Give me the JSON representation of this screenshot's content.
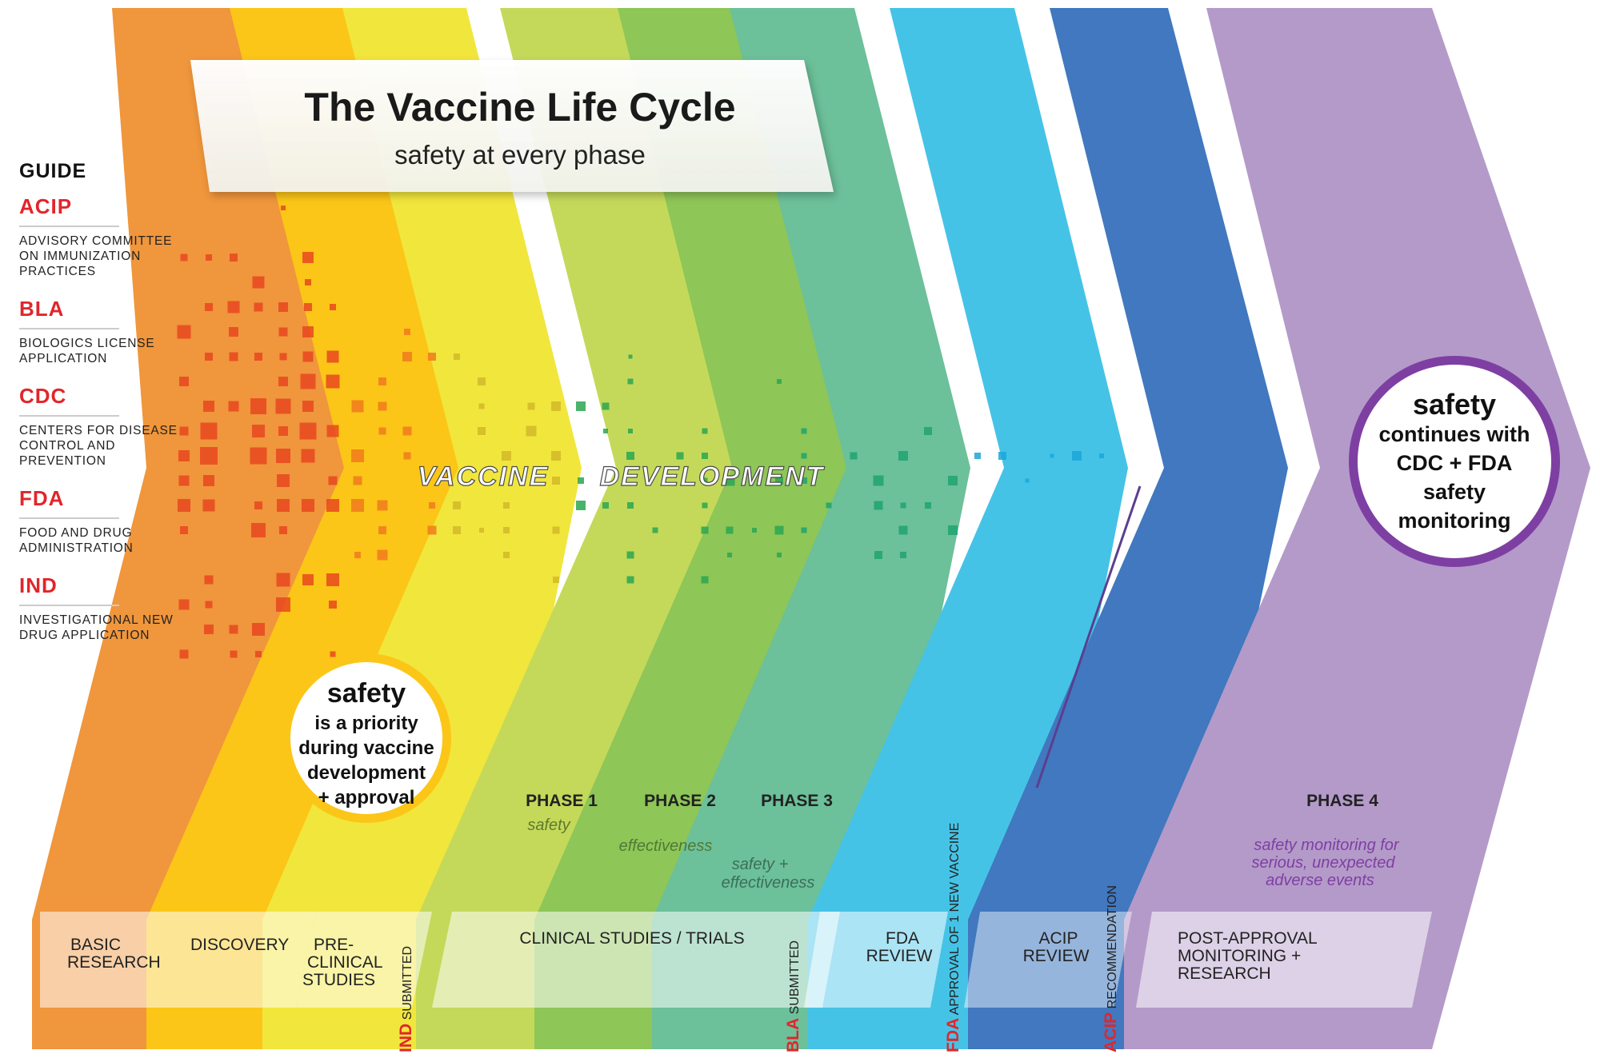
{
  "title": "The Vaccine Life Cycle",
  "subtitle": "safety at every phase",
  "guide": {
    "heading": "GUIDE",
    "items": [
      {
        "abbr": "ACIP",
        "full": "ADVISORY COMMITTEE ON IMMUNIZATION PRACTICES"
      },
      {
        "abbr": "BLA",
        "full": "BIOLOGICS LICENSE APPLICATION"
      },
      {
        "abbr": "CDC",
        "full": "CENTERS FOR DISEASE CONTROL AND PREVENTION"
      },
      {
        "abbr": "FDA",
        "full": "FOOD AND DRUG ADMINISTRATION"
      },
      {
        "abbr": "IND",
        "full": "INVESTIGATIONAL NEW DRUG APPLICATION"
      }
    ]
  },
  "banner": {
    "word1": "VACCINE",
    "word2": "DEVELOPMENT"
  },
  "badge_left": {
    "headline": "safety",
    "lines": [
      "is a priority",
      "during vaccine",
      "development",
      "+ approval"
    ]
  },
  "badge_right": {
    "headline": "safety",
    "lines": [
      "continues with",
      "CDC + FDA",
      "safety",
      "monitoring"
    ]
  },
  "phases": {
    "phase1": {
      "label": "PHASE 1",
      "note": "safety"
    },
    "phase2": {
      "label": "PHASE 2",
      "note": "effectiveness"
    },
    "phase3": {
      "label": "PHASE 3",
      "note_lines": [
        "safety +",
        "effectiveness"
      ]
    },
    "phase4": {
      "label": "PHASE 4",
      "note_lines": [
        "safety monitoring for",
        "serious, unexpected",
        "adverse events"
      ]
    }
  },
  "stages": {
    "basic_research": [
      "BASIC",
      "RESEARCH"
    ],
    "discovery": [
      "DISCOVERY"
    ],
    "preclinical": [
      "PRE-",
      "CLINICAL",
      "STUDIES"
    ],
    "clinical": [
      "CLINICAL STUDIES / TRIALS"
    ],
    "fda_review": [
      "FDA",
      "REVIEW"
    ],
    "acip_review": [
      "ACIP",
      "REVIEW"
    ],
    "post_approval": [
      "POST-APPROVAL",
      "MONITORING +",
      "RESEARCH"
    ]
  },
  "milestones": {
    "ind": {
      "abbr": "IND",
      "rest": "SUBMITTED"
    },
    "bla": {
      "abbr": "BLA",
      "rest": "SUBMITTED"
    },
    "fda": {
      "abbr": "FDA",
      "rest": "APPROVAL OF 1 NEW VACCINE"
    },
    "acip": {
      "abbr": "ACIP",
      "rest": "RECOMMENDATION"
    }
  },
  "colors": {
    "orange": "#f0963c",
    "amber": "#fbc617",
    "yellow": "#f1e63c",
    "lime": "#c4d95a",
    "green": "#8ec657",
    "teal": "#6cc09a",
    "sky": "#45c3e6",
    "blue": "#4178bf",
    "purple": "#b49ac9",
    "accent_red": "#e0262b",
    "purple_text": "#7e3fa3"
  }
}
